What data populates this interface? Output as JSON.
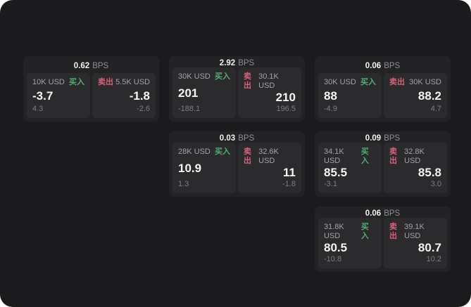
{
  "labels": {
    "bps_suffix": "BPS",
    "buy": "买入",
    "sell": "卖出"
  },
  "colors": {
    "frame_bg": "#1b1b1d",
    "card_bg": "#232325",
    "panel_bg": "#2b2b2e",
    "buy_green": "#4fae75",
    "sell_red": "#d6607a"
  },
  "cards": [
    {
      "bps_value": "0.62",
      "grid": {
        "row": 1,
        "col": 1
      },
      "buy": {
        "amount": "10K USD",
        "value": "-3.7",
        "sub_value": "4.3"
      },
      "sell": {
        "amount": "5.5K USD",
        "value": "-1.8",
        "sub_value": "-2.6"
      }
    },
    {
      "bps_value": "2.92",
      "grid": {
        "row": 1,
        "col": 2
      },
      "buy": {
        "amount": "30K USD",
        "value": "201",
        "sub_value": "-188.1"
      },
      "sell": {
        "amount": "30.1K USD",
        "value": "210",
        "sub_value": "196.5"
      }
    },
    {
      "bps_value": "0.06",
      "grid": {
        "row": 1,
        "col": 3
      },
      "buy": {
        "amount": "30K USD",
        "value": "88",
        "sub_value": "-4.9"
      },
      "sell": {
        "amount": "30K USD",
        "value": "88.2",
        "sub_value": "4.7"
      }
    },
    {
      "bps_value": "0.03",
      "grid": {
        "row": 2,
        "col": 2
      },
      "buy": {
        "amount": "28K USD",
        "value": "10.9",
        "sub_value": "1.3"
      },
      "sell": {
        "amount": "32.6K USD",
        "value": "11",
        "sub_value": "-1.8"
      }
    },
    {
      "bps_value": "0.09",
      "grid": {
        "row": 2,
        "col": 3
      },
      "buy": {
        "amount": "34.1K USD",
        "value": "85.5",
        "sub_value": "-3.1"
      },
      "sell": {
        "amount": "32.8K USD",
        "value": "85.8",
        "sub_value": "3.0"
      }
    },
    {
      "bps_value": "0.06",
      "grid": {
        "row": 3,
        "col": 3
      },
      "buy": {
        "amount": "31.8K USD",
        "value": "80.5",
        "sub_value": "-10.8"
      },
      "sell": {
        "amount": "39.1K USD",
        "value": "80.7",
        "sub_value": "10.2"
      }
    }
  ]
}
